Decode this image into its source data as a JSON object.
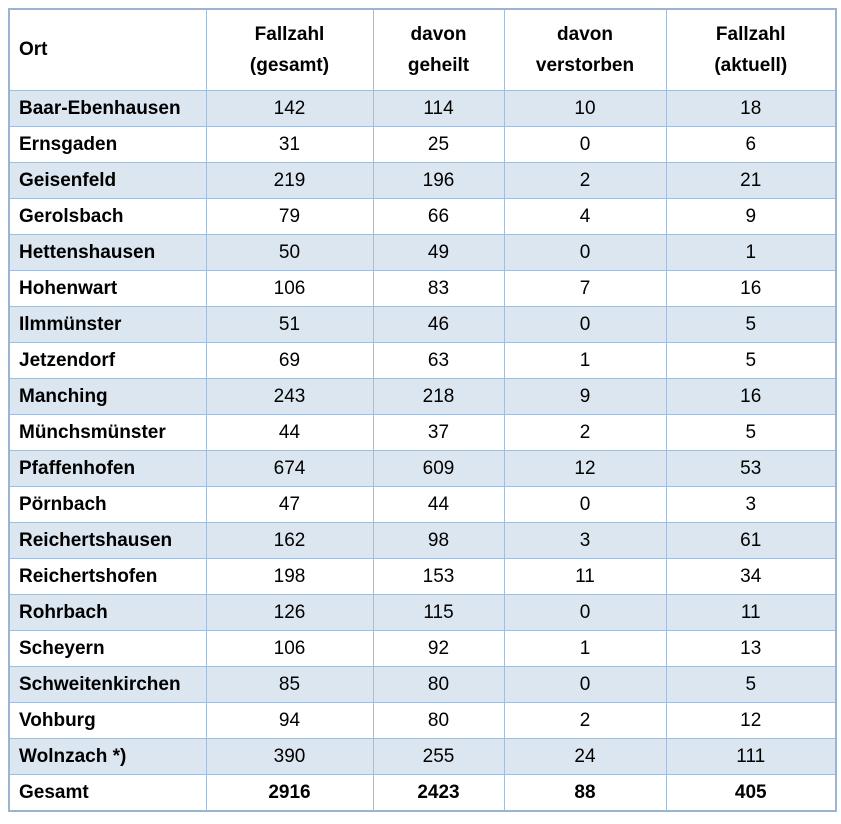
{
  "table": {
    "columns": [
      {
        "id": "ort",
        "label": "Ort"
      },
      {
        "id": "fallzahl_gesamt",
        "label_line1": "Fallzahl",
        "label_line2": "(gesamt)"
      },
      {
        "id": "davon_geheilt",
        "label_line1": "davon",
        "label_line2": "geheilt"
      },
      {
        "id": "davon_verstorben",
        "label_line1": "davon",
        "label_line2": "verstorben"
      },
      {
        "id": "fallzahl_aktuell",
        "label_line1": "Fallzahl",
        "label_line2": "(aktuell)"
      }
    ],
    "rows": [
      {
        "ort": "Baar-Ebenhausen",
        "gesamt": "142",
        "geheilt": "114",
        "verstorben": "10",
        "aktuell": "18"
      },
      {
        "ort": "Ernsgaden",
        "gesamt": "31",
        "geheilt": "25",
        "verstorben": "0",
        "aktuell": "6"
      },
      {
        "ort": "Geisenfeld",
        "gesamt": "219",
        "geheilt": "196",
        "verstorben": "2",
        "aktuell": "21"
      },
      {
        "ort": "Gerolsbach",
        "gesamt": "79",
        "geheilt": "66",
        "verstorben": "4",
        "aktuell": "9"
      },
      {
        "ort": "Hettenshausen",
        "gesamt": "50",
        "geheilt": "49",
        "verstorben": "0",
        "aktuell": "1"
      },
      {
        "ort": "Hohenwart",
        "gesamt": "106",
        "geheilt": "83",
        "verstorben": "7",
        "aktuell": "16"
      },
      {
        "ort": "Ilmmünster",
        "gesamt": "51",
        "geheilt": "46",
        "verstorben": "0",
        "aktuell": "5"
      },
      {
        "ort": "Jetzendorf",
        "gesamt": "69",
        "geheilt": "63",
        "verstorben": "1",
        "aktuell": "5"
      },
      {
        "ort": "Manching",
        "gesamt": "243",
        "geheilt": "218",
        "verstorben": "9",
        "aktuell": "16"
      },
      {
        "ort": "Münchsmünster",
        "gesamt": "44",
        "geheilt": "37",
        "verstorben": "2",
        "aktuell": "5"
      },
      {
        "ort": "Pfaffenhofen",
        "gesamt": "674",
        "geheilt": "609",
        "verstorben": "12",
        "aktuell": "53"
      },
      {
        "ort": "Pörnbach",
        "gesamt": "47",
        "geheilt": "44",
        "verstorben": "0",
        "aktuell": "3"
      },
      {
        "ort": "Reichertshausen",
        "gesamt": "162",
        "geheilt": "98",
        "verstorben": "3",
        "aktuell": "61"
      },
      {
        "ort": "Reichertshofen",
        "gesamt": "198",
        "geheilt": "153",
        "verstorben": "11",
        "aktuell": "34"
      },
      {
        "ort": "Rohrbach",
        "gesamt": "126",
        "geheilt": "115",
        "verstorben": "0",
        "aktuell": "11"
      },
      {
        "ort": "Scheyern",
        "gesamt": "106",
        "geheilt": "92",
        "verstorben": "1",
        "aktuell": "13"
      },
      {
        "ort": "Schweitenkirchen",
        "gesamt": "85",
        "geheilt": "80",
        "verstorben": "0",
        "aktuell": "5"
      },
      {
        "ort": "Vohburg",
        "gesamt": "94",
        "geheilt": "80",
        "verstorben": "2",
        "aktuell": "12"
      },
      {
        "ort": "Wolnzach *)",
        "gesamt": "390",
        "geheilt": "255",
        "verstorben": "24",
        "aktuell": "111"
      }
    ],
    "total_row": {
      "ort": "Gesamt",
      "gesamt": "2916",
      "geheilt": "2423",
      "verstorben": "88",
      "aktuell": "405"
    },
    "colors": {
      "row_shaded": "#dce6f1",
      "row_white": "#ffffff",
      "border": "#a6bdd7"
    }
  },
  "chart_data": {
    "type": "table",
    "title": "",
    "columns": [
      "Ort",
      "Fallzahl (gesamt)",
      "davon geheilt",
      "davon verstorben",
      "Fallzahl (aktuell)"
    ],
    "rows": [
      [
        "Baar-Ebenhausen",
        142,
        114,
        10,
        18
      ],
      [
        "Ernsgaden",
        31,
        25,
        0,
        6
      ],
      [
        "Geisenfeld",
        219,
        196,
        2,
        21
      ],
      [
        "Gerolsbach",
        79,
        66,
        4,
        9
      ],
      [
        "Hettenshausen",
        50,
        49,
        0,
        1
      ],
      [
        "Hohenwart",
        106,
        83,
        7,
        16
      ],
      [
        "Ilmmünster",
        51,
        46,
        0,
        5
      ],
      [
        "Jetzendorf",
        69,
        63,
        1,
        5
      ],
      [
        "Manching",
        243,
        218,
        9,
        16
      ],
      [
        "Münchsmünster",
        44,
        37,
        2,
        5
      ],
      [
        "Pfaffenhofen",
        674,
        609,
        12,
        53
      ],
      [
        "Pörnbach",
        47,
        44,
        0,
        3
      ],
      [
        "Reichertshausen",
        162,
        98,
        3,
        61
      ],
      [
        "Reichertshofen",
        198,
        153,
        11,
        34
      ],
      [
        "Rohrbach",
        126,
        115,
        0,
        11
      ],
      [
        "Scheyern",
        106,
        92,
        1,
        13
      ],
      [
        "Schweitenkirchen",
        85,
        80,
        0,
        5
      ],
      [
        "Vohburg",
        94,
        80,
        2,
        12
      ],
      [
        "Wolnzach *)",
        390,
        255,
        24,
        111
      ],
      [
        "Gesamt",
        2916,
        2423,
        88,
        405
      ]
    ]
  }
}
